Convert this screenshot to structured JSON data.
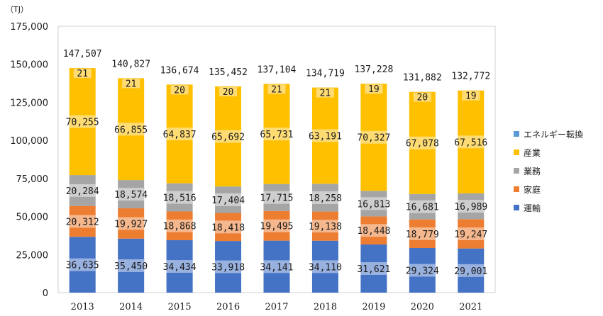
{
  "chart_data": {
    "type": "bar",
    "stacked": true,
    "unit_label": "（TJ）",
    "categories": [
      "2013",
      "2014",
      "2015",
      "2016",
      "2017",
      "2018",
      "2019",
      "2020",
      "2021"
    ],
    "ylim": [
      0,
      175000
    ],
    "yticks": [
      "0",
      "25,000",
      "50,000",
      "75,000",
      "100,000",
      "125,000",
      "150,000",
      "175,000"
    ],
    "ytick_values": [
      0,
      25000,
      50000,
      75000,
      100000,
      125000,
      150000,
      175000
    ],
    "series": [
      {
        "name": "運輸",
        "color": "#4472C4",
        "values": [
          36635,
          35450,
          34434,
          33918,
          34141,
          34110,
          31621,
          29324,
          29001
        ],
        "labels": [
          "36,635",
          "35,450",
          "34,434",
          "33,918",
          "34,141",
          "34,110",
          "31,621",
          "29,324",
          "29,001"
        ]
      },
      {
        "name": "家庭",
        "color": "#ED7D31",
        "values": [
          20312,
          19927,
          18868,
          18418,
          19495,
          19138,
          18448,
          18779,
          19247
        ],
        "labels": [
          "20,312",
          "19,927",
          "18,868",
          "18,418",
          "19,495",
          "19,138",
          "18,448",
          "18,779",
          "19,247"
        ]
      },
      {
        "name": "業務",
        "color": "#A5A5A5",
        "values": [
          20284,
          18574,
          18516,
          17404,
          17715,
          18258,
          16813,
          16681,
          16989
        ],
        "labels": [
          "20,284",
          "18,574",
          "18,516",
          "17,404",
          "17,715",
          "18,258",
          "16,813",
          "16,681",
          "16,989"
        ]
      },
      {
        "name": "産業",
        "color": "#FFC000",
        "values": [
          70255,
          66855,
          64837,
          65692,
          65731,
          63191,
          70327,
          67078,
          67516
        ],
        "labels": [
          "70,255",
          "66,855",
          "64,837",
          "65,692",
          "65,731",
          "63,191",
          "70,327",
          "67,078",
          "67,516"
        ]
      },
      {
        "name": "エネルギー転換",
        "color": "#5B9BD5",
        "values": [
          21,
          21,
          20,
          20,
          21,
          21,
          19,
          20,
          19
        ],
        "labels": [
          "21",
          "21",
          "20",
          "20",
          "21",
          "21",
          "19",
          "20",
          "19"
        ]
      }
    ],
    "totals": [
      147507,
      140827,
      136674,
      135452,
      137104,
      134719,
      137228,
      131882,
      132772
    ],
    "total_labels": [
      "147,507",
      "140,827",
      "136,674",
      "135,452",
      "137,104",
      "134,719",
      "137,228",
      "131,882",
      "132,772"
    ],
    "legend": [
      "エネルギー転換",
      "産業",
      "業務",
      "家庭",
      "運輸"
    ],
    "legend_colors": [
      "#5B9BD5",
      "#FFC000",
      "#A5A5A5",
      "#ED7D31",
      "#4472C4"
    ],
    "legend_position": "right"
  }
}
